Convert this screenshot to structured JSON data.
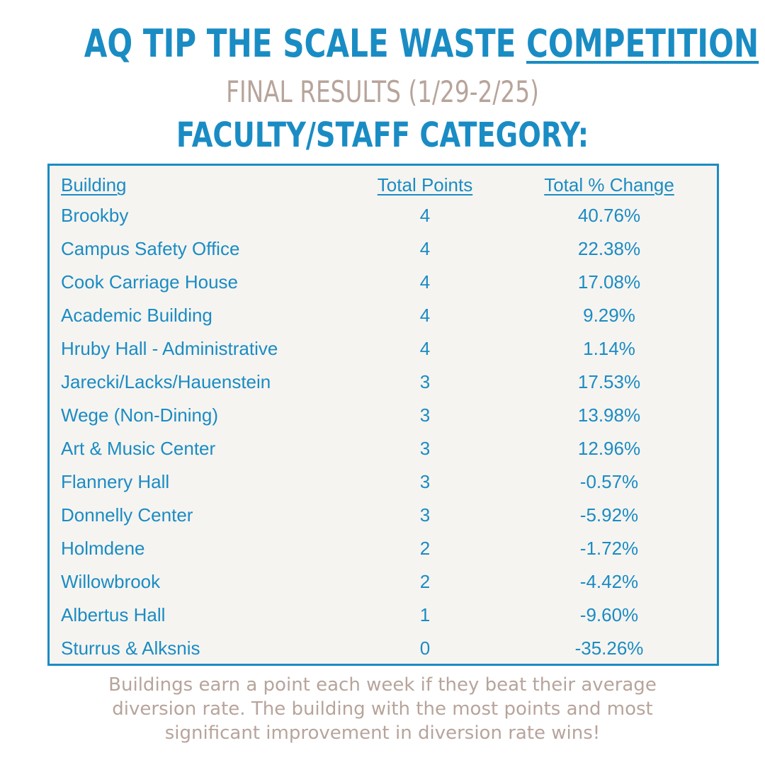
{
  "header": {
    "title_prefix": "AQ TIP THE SCALE WASTE ",
    "title_underlined": "COMPETITION",
    "subtitle": "FINAL RESULTS (1/29-2/25)",
    "category": "FACULTY/STAFF CATEGORY:"
  },
  "table": {
    "columns": [
      "Building",
      "Total Points",
      "Total % Change"
    ],
    "rows": [
      {
        "building": "Brookby",
        "points": "4",
        "change": "40.76%"
      },
      {
        "building": "Campus Safety Office",
        "points": "4",
        "change": "22.38%"
      },
      {
        "building": "Cook Carriage House",
        "points": "4",
        "change": "17.08%"
      },
      {
        "building": "Academic Building",
        "points": "4",
        "change": "9.29%"
      },
      {
        "building": "Hruby Hall - Administrative",
        "points": "4",
        "change": "1.14%"
      },
      {
        "building": "Jarecki/Lacks/Hauenstein",
        "points": "3",
        "change": "17.53%"
      },
      {
        "building": "Wege (Non-Dining)",
        "points": "3",
        "change": "13.98%"
      },
      {
        "building": "Art & Music Center",
        "points": "3",
        "change": "12.96%"
      },
      {
        "building": "Flannery Hall",
        "points": "3",
        "change": "-0.57%"
      },
      {
        "building": "Donnelly Center",
        "points": "3",
        "change": "-5.92%"
      },
      {
        "building": "Holmdene",
        "points": "2",
        "change": "-1.72%"
      },
      {
        "building": "Willowbrook",
        "points": "2",
        "change": "-4.42%"
      },
      {
        "building": "Albertus Hall",
        "points": "1",
        "change": "-9.60%"
      },
      {
        "building": "Sturrus & Alksnis",
        "points": "0",
        "change": "-35.26%"
      }
    ]
  },
  "footer": {
    "line1": "Buildings earn a point each week if they beat their average",
    "line2": "diversion rate. The building with the most points and most",
    "line3": "significant improvement in diversion rate wins!"
  },
  "colors": {
    "accent_blue": "#1a8cc4",
    "muted_taupe": "#b7a49b",
    "table_background": "#f6f4f0"
  }
}
